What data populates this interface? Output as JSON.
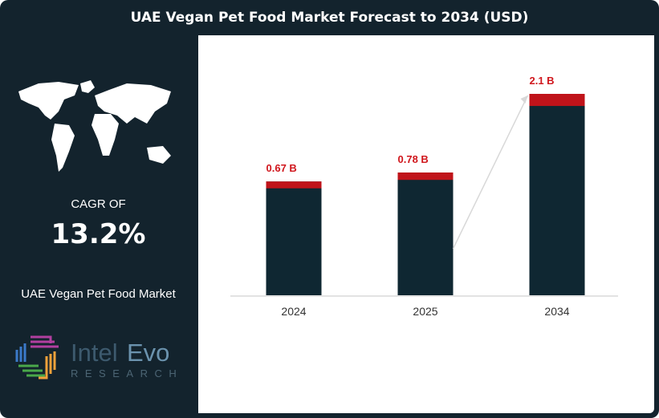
{
  "title": "UAE Vegan Pet Food Market Forecast to 2034 (USD)",
  "left_panel": {
    "cagr_label": "CAGR OF",
    "cagr_value": "13.2%",
    "market_name": "UAE Vegan Pet Food Market",
    "logo": {
      "name": "IntelEvo",
      "part1": "Intel",
      "part2": "Evo",
      "tagline": "RESEARCH"
    }
  },
  "chart_data": {
    "type": "bar",
    "categories": [
      "2024",
      "2025",
      "2034"
    ],
    "values": [
      0.67,
      0.78,
      2.1
    ],
    "data_labels": [
      "0.67 B",
      "0.78 B",
      "2.1 B"
    ],
    "unit": "B",
    "colors": {
      "bar": "#0f2732",
      "cap": "#c0131a",
      "label": "#d0161c",
      "arrow": "#d8d8d8"
    },
    "grid": false,
    "legend": "none",
    "arrow": "growth arrow from 2025 to 2034"
  }
}
